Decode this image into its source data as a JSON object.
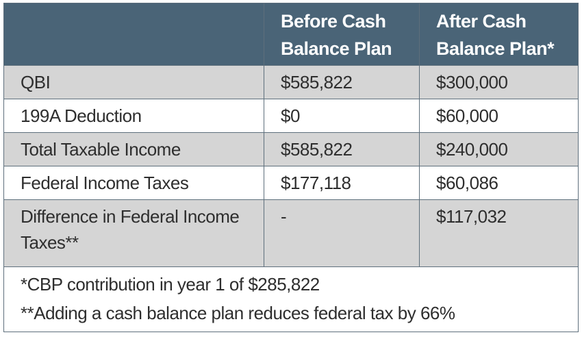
{
  "table": {
    "header": {
      "label": "",
      "before": "Before Cash Balance Plan",
      "after": "After Cash Balance Plan*"
    },
    "rows": [
      {
        "label": "QBI",
        "before": "$585,822",
        "after": "$300,000"
      },
      {
        "label": "199A Deduction",
        "before": "$0",
        "after": "$60,000"
      },
      {
        "label": "Total Taxable Income",
        "before": "$585,822",
        "after": "$240,000"
      },
      {
        "label": "Federal Income Taxes",
        "before": "$177,118",
        "after": "$60,086"
      },
      {
        "label": "Difference in Federal Income Taxes**",
        "before": "-",
        "after": "$117,032"
      }
    ],
    "footnotes": [
      "*CBP contribution in year 1 of $285,822",
      "**Adding a cash balance plan reduces federal tax by 66%"
    ]
  },
  "colors": {
    "header_bg": "#4a6477",
    "header_text": "#ffffff",
    "shaded_row": "#d5d5d5",
    "border": "#5e6f7c"
  }
}
